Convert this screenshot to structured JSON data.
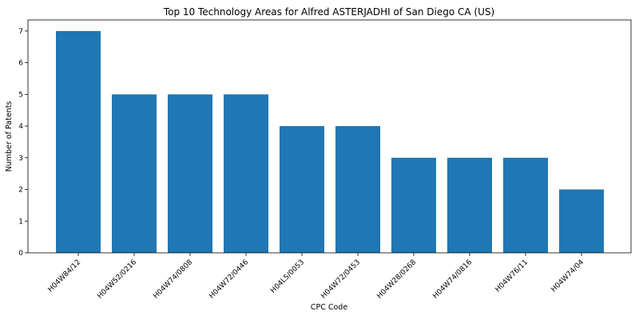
{
  "chart_data": {
    "type": "bar",
    "title": "Top 10 Technology Areas for Alfred ASTERJADHI of San Diego CA (US)",
    "xlabel": "CPC Code",
    "ylabel": "Number of Patents",
    "categories": [
      "H04W84/12",
      "H04W52/0216",
      "H04W74/0808",
      "H04W72/0446",
      "H04L5/0053",
      "H04W72/0453",
      "H04W28/0268",
      "H04W74/0816",
      "H04W76/11",
      "H04W74/04"
    ],
    "values": [
      7,
      5,
      5,
      5,
      4,
      4,
      3,
      3,
      3,
      2
    ],
    "ylim": [
      0,
      7.35
    ],
    "yticks": [
      0,
      1,
      2,
      3,
      4,
      5,
      6,
      7
    ],
    "bar_color": "#1f77b4",
    "grid": false,
    "legend": "none"
  }
}
